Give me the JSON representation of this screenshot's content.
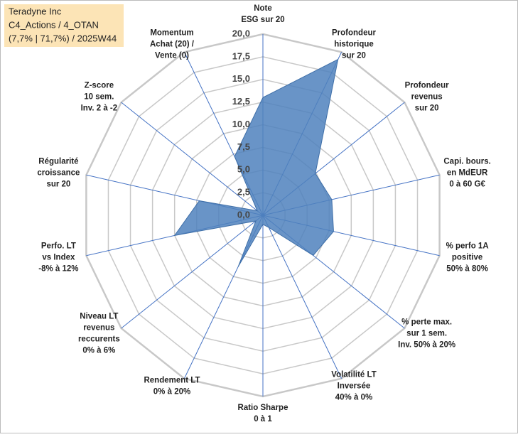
{
  "chart_data": {
    "type": "radar",
    "title": [
      "Teradyne Inc",
      "C4_Actions / 4_OTAN",
      "(7,7% | 71,7%) / 2025W44"
    ],
    "categories": [
      [
        "Note",
        "ESG sur 20"
      ],
      [
        "Profondeur",
        "historique",
        "sur 20"
      ],
      [
        "Profondeur",
        "revenus",
        "sur 20"
      ],
      [
        "Capi. bours.",
        "en MdEUR",
        "0 à 60 G€"
      ],
      [
        "% perfo 1A",
        "positive",
        "50% à 80%"
      ],
      [
        "% perte max.",
        "sur 1 sem.",
        "Inv. 50% à 20%"
      ],
      [
        "Volatilité LT",
        "Inversée",
        "40% à 0%"
      ],
      [
        "Ratio Sharpe",
        "0 à 1"
      ],
      [
        "Rendement LT",
        "0% à 20%"
      ],
      [
        "Niveau LT",
        "revenus",
        "reccurents",
        "0% à 6%"
      ],
      [
        "Perfo. LT",
        "vs Index",
        "-8% à 12%"
      ],
      [
        "Régularité",
        "croissance",
        "sur 20"
      ],
      [
        "Z-score",
        "10 sem.",
        "Inv. 2 à -2"
      ],
      [
        "Momentum",
        "Achat (20) /",
        "Vente (0)"
      ]
    ],
    "values": [
      13,
      19.1,
      7.4,
      7.8,
      8,
      7.1,
      1.5,
      1,
      6.3,
      1,
      10,
      7.2,
      0.8,
      7.2
    ],
    "color": "#4f81bd",
    "ylim": [
      0,
      20
    ],
    "yticks": [
      {
        "value": 0,
        "label": "0,0"
      },
      {
        "value": 2.5,
        "label": "2,5"
      },
      {
        "value": 5,
        "label": "5,0"
      },
      {
        "value": 7.5,
        "label": "7,5"
      },
      {
        "value": 10,
        "label": "10,0"
      },
      {
        "value": 12.5,
        "label": "12,5"
      },
      {
        "value": 15,
        "label": "15,0"
      },
      {
        "value": 17.5,
        "label": "17,5"
      },
      {
        "value": 20,
        "label": "20,0"
      }
    ],
    "grid": true
  }
}
